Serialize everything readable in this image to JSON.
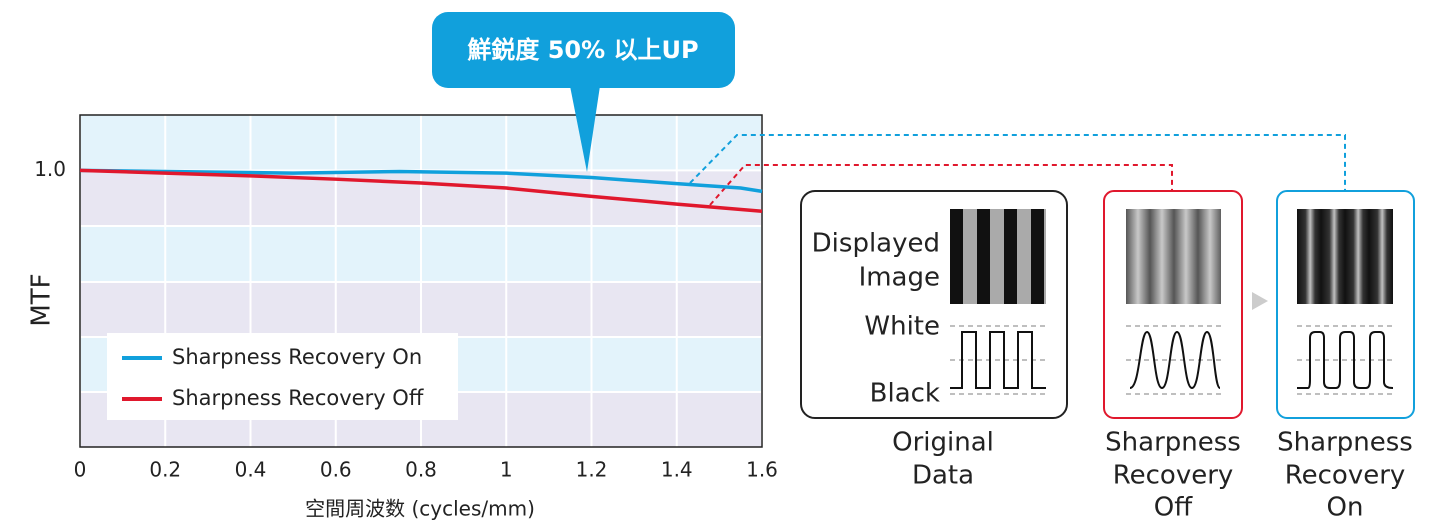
{
  "chart_data": {
    "type": "line",
    "annotation": "鮮鋭度 50% 以上UP",
    "xlabel": "空間周波数 (cycles/mm)",
    "ylabel": "MTF",
    "xlim": [
      0,
      1.6
    ],
    "xticks": [
      0,
      0.2,
      0.4,
      0.6,
      0.8,
      1,
      1.2,
      1.4,
      1.6
    ],
    "ylim": [
      0.5,
      1.1
    ],
    "yticks": [
      {
        "value": 1,
        "label": "1.0"
      }
    ],
    "grid": true,
    "legend": "lower left",
    "series": [
      {
        "name": "Sharpness Recovery On",
        "color": "#11a0dc",
        "x": [
          0,
          0.2,
          0.5,
          0.75,
          1,
          1.2,
          1.4,
          1.55,
          1.6
        ],
        "values": [
          1,
          0.998,
          0.995,
          0.998,
          0.995,
          0.987,
          0.976,
          0.968,
          0.962
        ]
      },
      {
        "name": "Sharpness Recovery Off",
        "color": "#e0182d",
        "x": [
          0,
          0.2,
          0.4,
          0.6,
          0.8,
          1,
          1.2,
          1.4,
          1.6
        ],
        "values": [
          1,
          0.995,
          0.99,
          0.984,
          0.977,
          0.968,
          0.953,
          0.939,
          0.926
        ]
      }
    ]
  },
  "diagram": {
    "image_label": [
      "Displayed",
      "Image"
    ],
    "white_label": "White",
    "black_label": "Black",
    "captions": [
      [
        "Original",
        "Data"
      ],
      [
        "Sharpness",
        "Recovery",
        "Off"
      ],
      [
        "Sharpness",
        "Recovery",
        "On"
      ]
    ]
  }
}
